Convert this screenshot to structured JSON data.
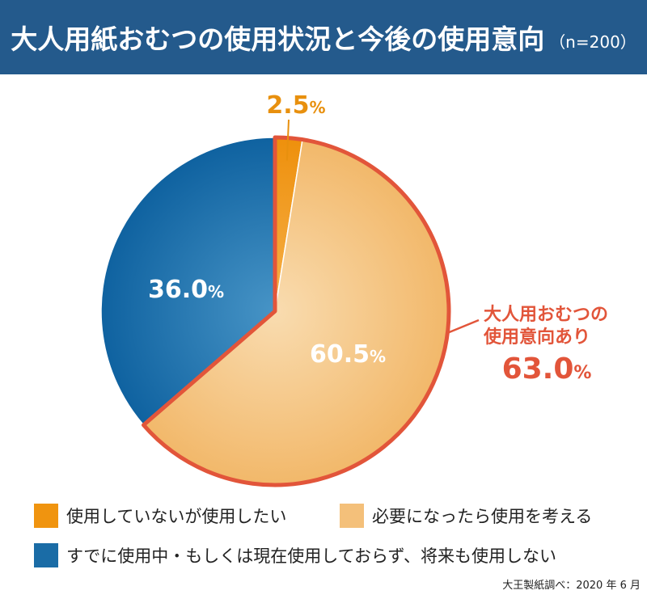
{
  "header": {
    "title": "大人用紙おむつの使用状況と今後の使用意向",
    "sample": "（n=200）"
  },
  "chart_data": {
    "type": "pie",
    "categories": [
      "使用していないが使用したい",
      "必要になったら使用を考える",
      "すでに使用中・もしくは現在使用しておらず、将来も使用しない"
    ],
    "values": [
      2.5,
      60.5,
      36.0
    ],
    "labels": [
      "2.5",
      "60.5",
      "36.0"
    ],
    "unit": "%",
    "colors": [
      "#f0940f",
      "#f4c07a",
      "#1a6ca6"
    ],
    "highlight": {
      "label_line1": "大人用おむつの",
      "label_line2": "使用意向あり",
      "value": "63.0",
      "unit": "%",
      "color": "#e2553a"
    }
  },
  "legend": [
    {
      "label": "使用していないが使用したい",
      "color": "#f0940f"
    },
    {
      "label": "必要になったら使用を考える",
      "color": "#f4c07a"
    },
    {
      "label": "すでに使用中・もしくは現在使用しておらず、将来も使用しない",
      "color": "#1a6ca6"
    }
  ],
  "source": "大王製紙調べ：2020 年 6 月"
}
